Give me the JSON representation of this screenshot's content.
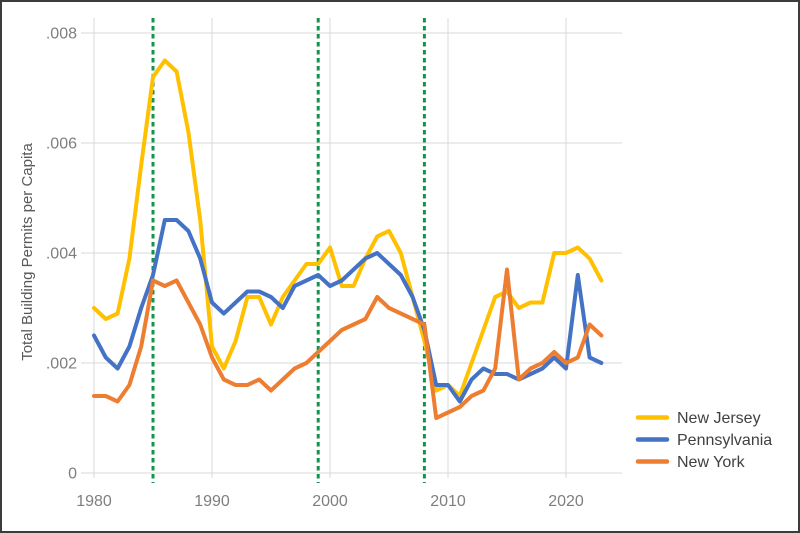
{
  "window": {
    "background": "#ffffff",
    "border_color": "#3c3c3c"
  },
  "chart_data": {
    "type": "line",
    "title": "",
    "xlabel": "",
    "ylabel": "Total Building Permits per Capita",
    "ylim": [
      0,
      0.008
    ],
    "xlim": [
      1980,
      2024.7
    ],
    "grid": true,
    "legend_position": "bottom-right",
    "gridline_color": "#d9d9d9",
    "legend_text_color": "#404040",
    "x": [
      1980,
      1981,
      1982,
      1983,
      1984,
      1985,
      1986,
      1987,
      1988,
      1989,
      1990,
      1991,
      1992,
      1993,
      1994,
      1995,
      1996,
      1997,
      1998,
      1999,
      2000,
      2001,
      2002,
      2003,
      2004,
      2005,
      2006,
      2007,
      2008,
      2009,
      2010,
      2011,
      2012,
      2013,
      2014,
      2015,
      2016,
      2017,
      2018,
      2019,
      2020,
      2021,
      2022,
      2023
    ],
    "series": [
      {
        "name": "New Jersey",
        "color": "#FFC000",
        "values": [
          0.003,
          0.0028,
          0.0029,
          0.0039,
          0.0056,
          0.0072,
          0.0075,
          0.0073,
          0.0062,
          0.0046,
          0.0023,
          0.0019,
          0.0024,
          0.0032,
          0.0032,
          0.0027,
          0.0032,
          0.0035,
          0.0038,
          0.0038,
          0.0041,
          0.0034,
          0.0034,
          0.0039,
          0.0043,
          0.0044,
          0.004,
          0.0032,
          0.0024,
          0.0015,
          0.0016,
          0.0014,
          0.002,
          0.0026,
          0.0032,
          0.0033,
          0.003,
          0.0031,
          0.0031,
          0.004,
          0.004,
          0.0041,
          0.0039,
          0.0035
        ]
      },
      {
        "name": "Pennsylvania",
        "color": "#4472C4",
        "values": [
          0.0025,
          0.0021,
          0.0019,
          0.0023,
          0.003,
          0.0036,
          0.0046,
          0.0046,
          0.0044,
          0.0039,
          0.0031,
          0.0029,
          0.0031,
          0.0033,
          0.0033,
          0.0032,
          0.003,
          0.0034,
          0.0035,
          0.0036,
          0.0034,
          0.0035,
          0.0037,
          0.0039,
          0.004,
          0.0038,
          0.0036,
          0.0032,
          0.0026,
          0.0016,
          0.0016,
          0.0013,
          0.0017,
          0.0019,
          0.0018,
          0.0018,
          0.0017,
          0.0018,
          0.0019,
          0.0021,
          0.0019,
          0.0036,
          0.0021,
          0.002
        ]
      },
      {
        "name": "New York",
        "color": "#ED7D31",
        "values": [
          0.0014,
          0.0014,
          0.0013,
          0.0016,
          0.0023,
          0.0035,
          0.0034,
          0.0035,
          0.0031,
          0.0027,
          0.0021,
          0.0017,
          0.0016,
          0.0016,
          0.0017,
          0.0015,
          0.0017,
          0.0019,
          0.002,
          0.0022,
          0.0024,
          0.0026,
          0.0027,
          0.0028,
          0.0032,
          0.003,
          0.0029,
          0.0028,
          0.0027,
          0.001,
          0.0011,
          0.0012,
          0.0014,
          0.0015,
          0.0019,
          0.0037,
          0.0017,
          0.0019,
          0.002,
          0.0022,
          0.002,
          0.0021,
          0.0027,
          0.0025
        ]
      }
    ],
    "reference_lines": {
      "style": "dashed",
      "color": "#12944B",
      "x_values": [
        1985,
        1999,
        2008
      ]
    },
    "y_axis": {
      "tick_labels": [
        ".008",
        ".006",
        ".004",
        ".002",
        "0"
      ],
      "tick_values": [
        0.008,
        0.006,
        0.004,
        0.002,
        0
      ],
      "label_color": "#7f7f7f",
      "title_color": "#595959"
    },
    "x_axis": {
      "tick_labels": [
        "1980",
        "1990",
        "2000",
        "2010",
        "2020"
      ],
      "tick_values": [
        1980,
        1990,
        2000,
        2010,
        2020
      ],
      "label_color": "#7f7f7f"
    },
    "legend": [
      "New Jersey",
      "Pennsylvania",
      "New York"
    ]
  }
}
